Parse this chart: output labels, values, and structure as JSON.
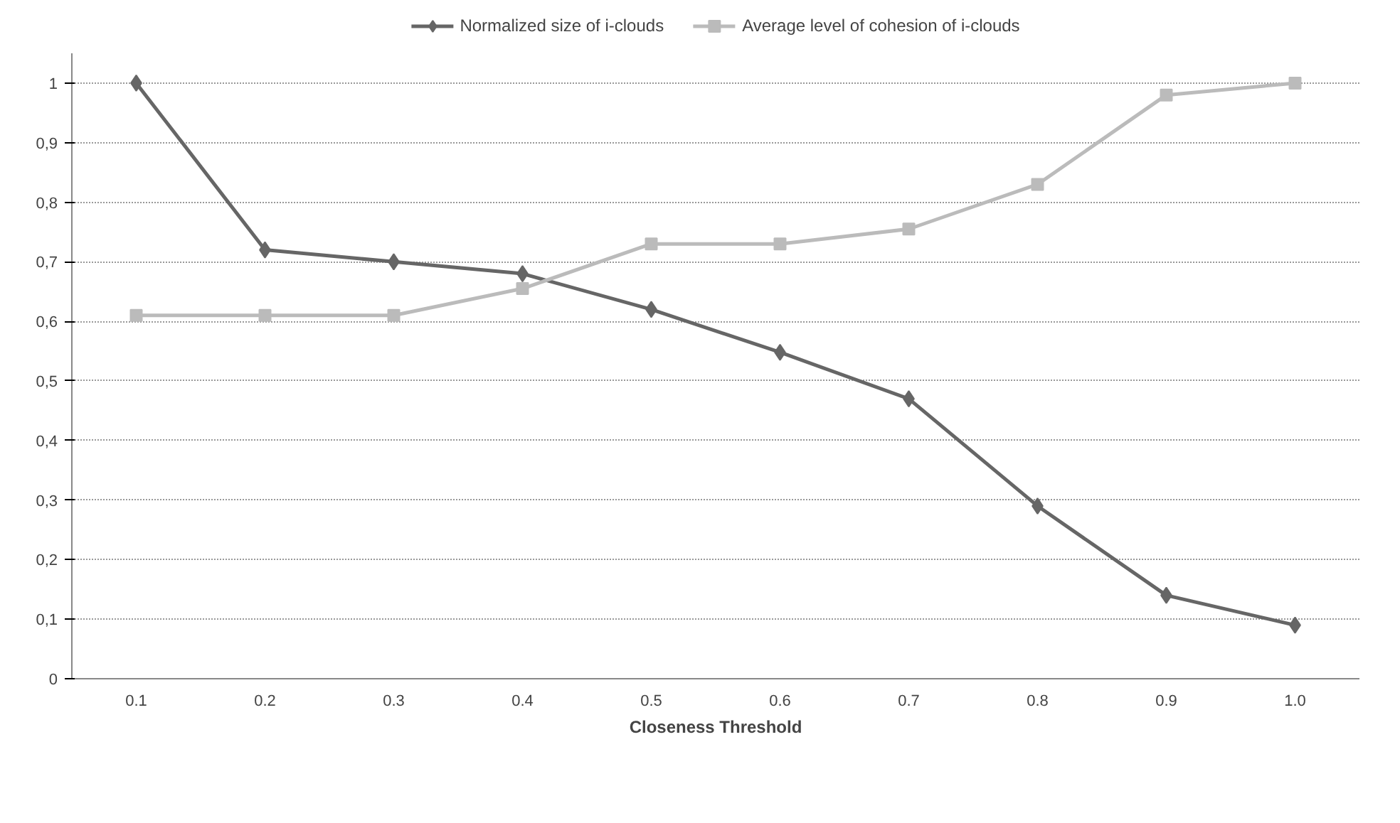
{
  "chart_data": {
    "type": "line",
    "xlabel": "Closeness Threshold",
    "categories": [
      "0.1",
      "0.2",
      "0.3",
      "0.4",
      "0.5",
      "0.6",
      "0.7",
      "0.8",
      "0.9",
      "1.0"
    ],
    "series": [
      {
        "name": "Normalized size of i-clouds",
        "color": "#666666",
        "marker": "diamond",
        "values": [
          1,
          0.72,
          0.7,
          0.68,
          0.62,
          0.548,
          0.47,
          0.29,
          0.14,
          0.09
        ]
      },
      {
        "name": "Average level of cohesion of i-clouds",
        "color": "#bbbbbb",
        "marker": "square",
        "values": [
          0.61,
          0.61,
          0.61,
          0.655,
          0.73,
          0.73,
          0.755,
          0.83,
          0.98,
          1.0
        ]
      }
    ],
    "ylim": [
      0,
      1.05
    ],
    "yticks": [
      {
        "value": 0,
        "label": "0"
      },
      {
        "value": 0.1,
        "label": "0,1"
      },
      {
        "value": 0.2,
        "label": "0,2"
      },
      {
        "value": 0.3,
        "label": "0,3"
      },
      {
        "value": 0.4,
        "label": "0,4"
      },
      {
        "value": 0.5,
        "label": "0,5"
      },
      {
        "value": 0.6,
        "label": "0,6"
      },
      {
        "value": 0.7,
        "label": "0,7"
      },
      {
        "value": 0.8,
        "label": "0,8"
      },
      {
        "value": 0.9,
        "label": "0,9"
      },
      {
        "value": 1,
        "label": "1"
      }
    ],
    "grid": "y",
    "legend": "top",
    "line_style": "solid"
  }
}
